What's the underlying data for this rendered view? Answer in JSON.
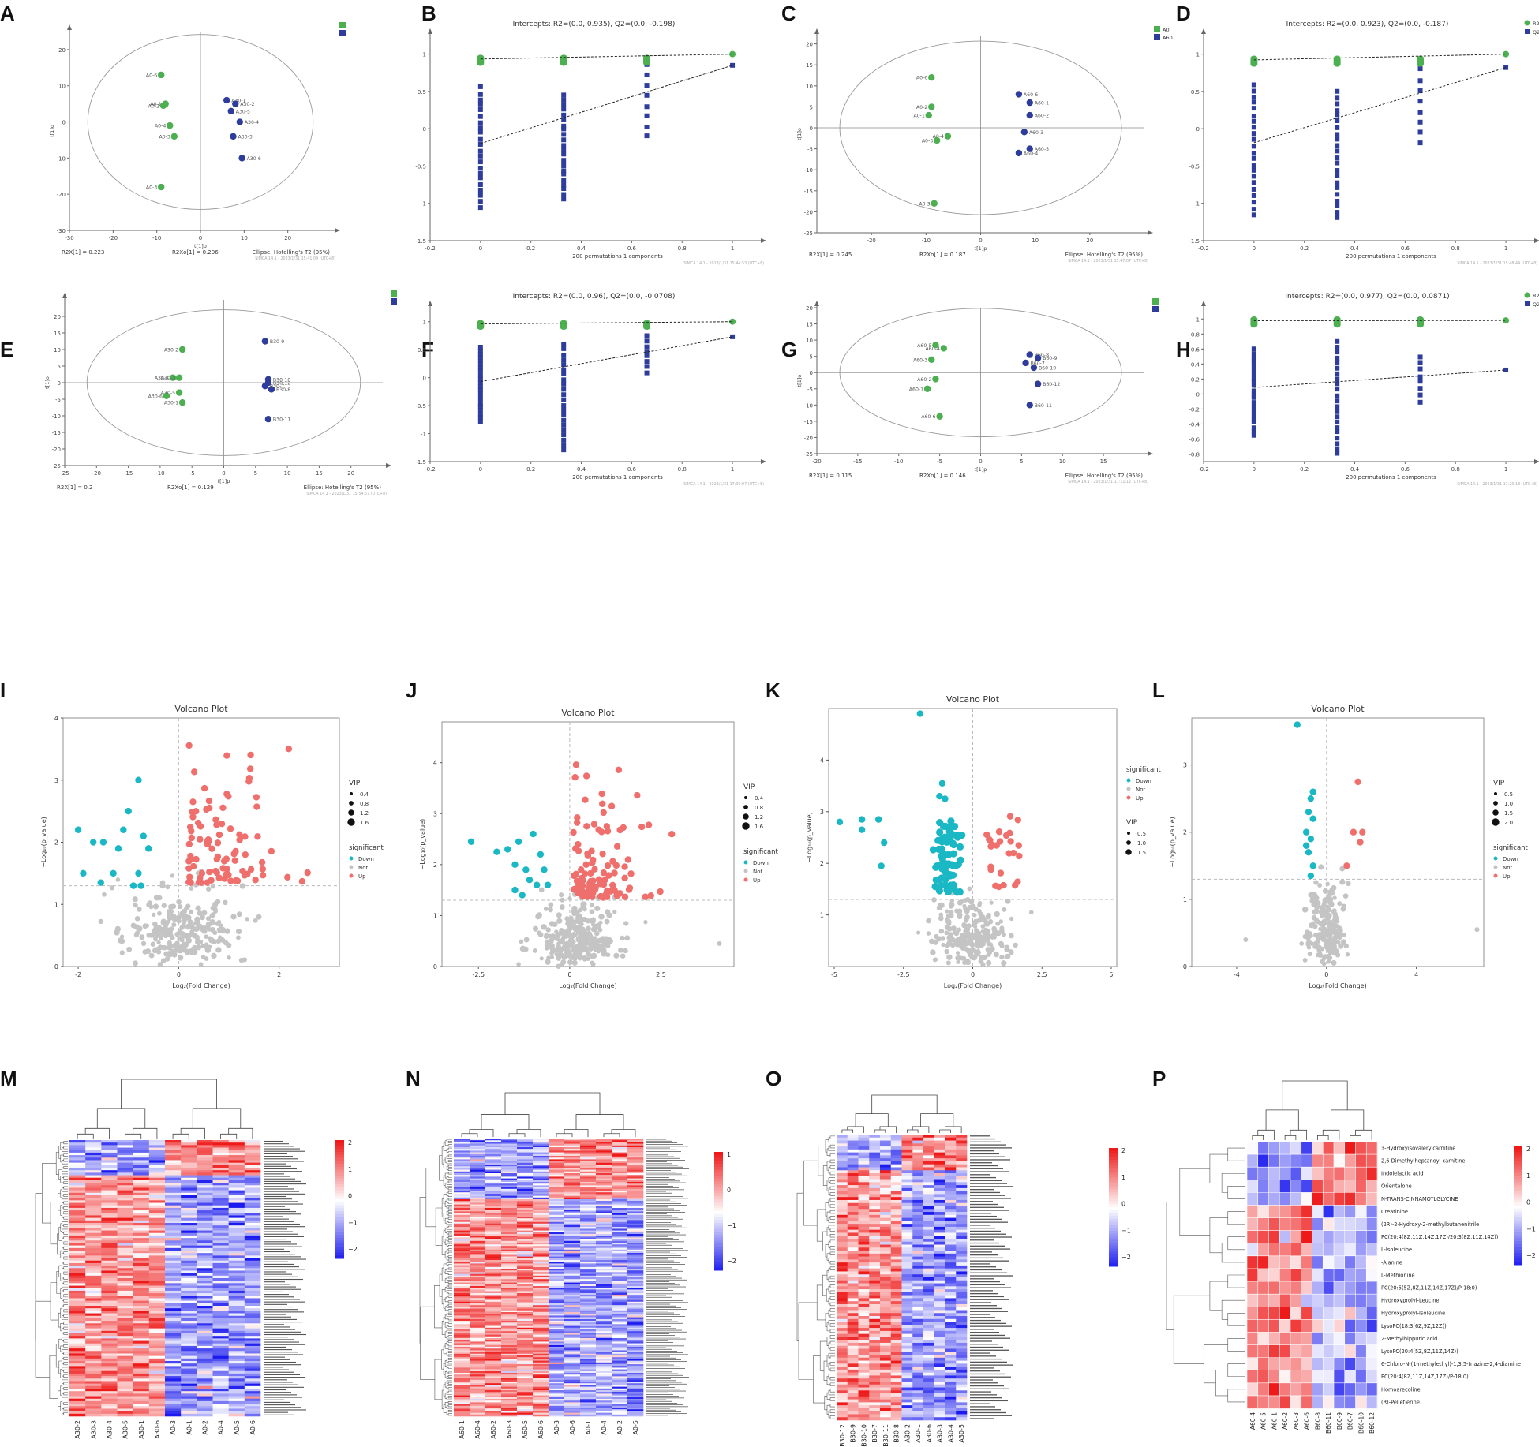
{
  "figure": {
    "panel_letters": [
      "A",
      "B",
      "C",
      "D",
      "E",
      "F",
      "G",
      "H",
      "I",
      "J",
      "K",
      "L",
      "M",
      "N",
      "O",
      "P"
    ]
  },
  "colors": {
    "green": "#4caf50",
    "blue": "#2e3d9b",
    "down": "#1ab7c4",
    "up": "#ef6f6c",
    "not": "#c4c4c4",
    "hm_low": "#1a1aee",
    "hm_mid": "#ffffff",
    "hm_high": "#ee1a1a"
  },
  "chart_data": [
    {
      "id": "A",
      "type": "scatter",
      "subtype": "opls-da-score",
      "x": [
        -9,
        -8,
        -8.5,
        -7,
        -6,
        -9,
        6,
        8,
        7,
        9,
        7.5,
        9.5
      ],
      "y": [
        13,
        5,
        4.5,
        -1,
        -4,
        -18,
        6,
        5,
        3,
        0,
        -4,
        -10
      ],
      "point_labels": [
        "A0-6",
        "A0-1",
        "A0-2",
        "A0-4",
        "A0-3",
        "A0-3",
        "A30-1",
        "A30-2",
        "A30-5",
        "A30-4",
        "A30-3",
        "A30-6"
      ],
      "groups": [
        "g",
        "g",
        "g",
        "g",
        "g",
        "g",
        "b",
        "b",
        "b",
        "b",
        "b",
        "b"
      ],
      "legend": [
        "",
        ""
      ],
      "xlim": [
        -30,
        30
      ],
      "ylim": [
        -30,
        25
      ],
      "xticks": [
        -30,
        -20,
        -10,
        0,
        10,
        20
      ],
      "yticks": [
        -30,
        -20,
        -10,
        0,
        10,
        20
      ],
      "xlabel": "t[1]p",
      "ylabel": "t[1]o",
      "footer": [
        "R2X[1] = 0.223",
        "R2Xo[1] = 0.206",
        "Ellipse: Hotelling's T2 (95%)"
      ],
      "stamp": "SIMCA 14.1 - 2023/1/31 15:41:04 (UTC+8)"
    },
    {
      "id": "B",
      "type": "scatter",
      "subtype": "permutation",
      "title": "Intercepts: R2=(0.0, 0.935), Q2=(0.0, -0.198)",
      "r2_end": 1.0,
      "q2_end": 0.85,
      "r2_intercept": 0.935,
      "q2_intercept": -0.198,
      "xlim": [
        -0.2,
        1.1
      ],
      "ylim": [
        -1.5,
        1.25
      ],
      "xticks": [
        -0.2,
        0,
        0.2,
        0.4,
        0.6,
        0.8,
        1
      ],
      "yticks": [
        -1.5,
        -1,
        -0.5,
        0,
        0.5,
        1
      ],
      "xlabel": "200 permutations 1 components",
      "q2_low": [
        -1.05,
        -0.95,
        -0.1
      ],
      "q2_high": [
        0.55,
        0.45,
        0.85
      ],
      "legend": [],
      "stamp": "SIMCA 14.1 - 2023/1/31 15:44:53 (UTC+8)"
    },
    {
      "id": "C",
      "type": "scatter",
      "subtype": "opls-da-score",
      "x": [
        -9,
        -9,
        -9.5,
        -6,
        -8,
        -8.5,
        7,
        9,
        9,
        8,
        9,
        7
      ],
      "y": [
        12,
        5,
        3,
        -2,
        -3,
        -18,
        8,
        6,
        3,
        -1,
        -5,
        -6
      ],
      "point_labels": [
        "A0-6",
        "A0-2",
        "A0-1",
        "A0-4",
        "A0-3",
        "A0-3",
        "A60-6",
        "A60-1",
        "A60-2",
        "A60-3",
        "A60-5",
        "A60-4"
      ],
      "groups": [
        "g",
        "g",
        "g",
        "g",
        "g",
        "g",
        "b",
        "b",
        "b",
        "b",
        "b",
        "b"
      ],
      "legend": [
        "A0",
        "A60"
      ],
      "xlim": [
        -30,
        30
      ],
      "ylim": [
        -25,
        22
      ],
      "xticks": [
        -20,
        -10,
        0,
        10,
        20
      ],
      "yticks": [
        -25,
        -20,
        -15,
        -10,
        -5,
        0,
        5,
        10,
        15,
        20
      ],
      "xlabel": "t[1]p",
      "ylabel": "t[1]o",
      "footer": [
        "R2X[1] = 0.245",
        "R2Xo[1] = 0.187",
        "Ellipse: Hotelling's T2 (95%)"
      ],
      "stamp": "SIMCA 14.1 - 2023/1/31 15:47:07 (UTC+8)"
    },
    {
      "id": "D",
      "type": "scatter",
      "subtype": "permutation",
      "title": "Intercepts: R2=(0.0, 0.923), Q2=(0.0, -0.187)",
      "r2_end": 1.0,
      "q2_end": 0.82,
      "r2_intercept": 0.923,
      "q2_intercept": -0.187,
      "xlim": [
        -0.2,
        1.1
      ],
      "ylim": [
        -1.5,
        1.25
      ],
      "xticks": [
        -0.2,
        0,
        0.2,
        0.4,
        0.6,
        0.8,
        1
      ],
      "yticks": [
        -1.5,
        -1,
        -0.5,
        0,
        0.5,
        1
      ],
      "xlabel": "200 permutations 1 components",
      "q2_low": [
        -1.15,
        -1.2,
        -0.2
      ],
      "q2_high": [
        0.6,
        0.5,
        0.8
      ],
      "legend": [
        "R2",
        "Q2"
      ],
      "stamp": "SIMCA 14.1 - 2023/1/31 15:48:44 (UTC+8)"
    },
    {
      "id": "E",
      "type": "scatter",
      "subtype": "opls-da-score",
      "x": [
        -6.5,
        -8,
        -7,
        -9,
        -7,
        -6.5,
        6.5,
        7,
        7,
        7.5,
        7,
        6.5
      ],
      "y": [
        10,
        1.5,
        1.5,
        -4,
        -3,
        -6,
        12.5,
        1,
        0,
        -2,
        -11,
        -1
      ],
      "point_labels": [
        "A30-2",
        "A30-4",
        "A30-3",
        "A30-6",
        "A30-5",
        "A30-1",
        "B30-9",
        "B30-10",
        "B30-12",
        "B30-8",
        "B30-11",
        "B30-7"
      ],
      "groups": [
        "g",
        "g",
        "g",
        "g",
        "g",
        "g",
        "b",
        "b",
        "b",
        "b",
        "b",
        "b"
      ],
      "legend": [
        "",
        ""
      ],
      "xlim": [
        -25,
        25
      ],
      "ylim": [
        -25,
        25
      ],
      "xticks": [
        -25,
        -20,
        -15,
        -10,
        -5,
        0,
        5,
        10,
        15,
        20
      ],
      "yticks": [
        -25,
        -20,
        -15,
        -10,
        -5,
        0,
        5,
        10,
        15,
        20
      ],
      "xlabel": "t[1]p",
      "ylabel": "t[1]o",
      "footer": [
        "R2X[1] = 0.2",
        "R2Xo[1] = 0.129",
        "Ellipse: Hotelling's T2 (95%)"
      ],
      "stamp": "SIMCA 14.1 - 2023/1/31 15:54:57 (UTC+8)"
    },
    {
      "id": "F",
      "type": "scatter",
      "subtype": "permutation",
      "title": "Intercepts: R2=(0.0, 0.96), Q2=(0.0, -0.0708)",
      "r2_end": 1.0,
      "q2_end": 0.73,
      "r2_intercept": 0.96,
      "q2_intercept": -0.0708,
      "xlim": [
        -0.2,
        1.1
      ],
      "ylim": [
        -1.5,
        1.25
      ],
      "xticks": [
        -0.2,
        0,
        0.2,
        0.4,
        0.6,
        0.8,
        1
      ],
      "yticks": [
        -1.5,
        -1,
        -0.5,
        0,
        0.5,
        1
      ],
      "xlabel": "200 permutations 1 components",
      "q2_low": [
        -0.78,
        -1.3,
        0.1
      ],
      "q2_high": [
        0.55,
        0.6,
        0.75
      ],
      "legend": [],
      "stamp": "SIMCA 14.1 - 2023/1/31 17:09:07 (UTC+8)"
    },
    {
      "id": "G",
      "type": "scatter",
      "subtype": "opls-da-score",
      "x": [
        -5.5,
        -4.5,
        -6,
        -5.5,
        -6.5,
        -5,
        6,
        7,
        5.5,
        6.5,
        7,
        6
      ],
      "y": [
        8.5,
        7.5,
        4,
        -2,
        -5,
        -13.5,
        5.5,
        4.5,
        3,
        1.5,
        -3.5,
        -10
      ],
      "point_labels": [
        "A60-5",
        "A60-4",
        "A60-3",
        "A60-2",
        "A60-1",
        "A60-6",
        "B60-8",
        "B60-9",
        "B60-7",
        "B60-10",
        "B60-12",
        "B60-11"
      ],
      "groups": [
        "g",
        "g",
        "g",
        "g",
        "g",
        "g",
        "b",
        "b",
        "b",
        "b",
        "b",
        "b"
      ],
      "legend": [],
      "xlim": [
        -20,
        20
      ],
      "ylim": [
        -25,
        20
      ],
      "xticks": [
        -20,
        -15,
        -10,
        -5,
        0,
        5,
        10,
        15
      ],
      "yticks": [
        -25,
        -20,
        -15,
        -10,
        -5,
        0,
        5,
        10,
        15,
        20
      ],
      "xlabel": "t[1]p",
      "ylabel": "t[1]o",
      "footer": [
        "R2X[1] = 0.115",
        "R2Xo[1] = 0.146",
        "Ellipse: Hotelling's T2 (95%)"
      ],
      "stamp": "SIMCA 14.1 - 2023/1/31 17:11:12 (UTC+8)"
    },
    {
      "id": "H",
      "type": "scatter",
      "subtype": "permutation",
      "title": "Intercepts: R2=(0.0, 0.977), Q2=(0.0, 0.0871)",
      "r2_end": 0.98,
      "q2_end": 0.32,
      "r2_intercept": 0.977,
      "q2_intercept": 0.0871,
      "xlim": [
        -0.2,
        1.1
      ],
      "ylim": [
        -0.9,
        1.15
      ],
      "xticks": [
        -0.2,
        0,
        0.2,
        0.4,
        0.6,
        0.8,
        1
      ],
      "yticks": [
        -0.8,
        -0.6,
        -0.4,
        -0.2,
        0,
        0.2,
        0.4,
        0.6,
        0.8,
        1
      ],
      "xlabel": "200 permutations 1 components",
      "q2_low": [
        -0.55,
        -0.8,
        -0.1
      ],
      "q2_high": [
        0.6,
        0.7,
        0.5
      ],
      "legend": [
        "R2",
        "Q2"
      ],
      "stamp": "SIMCA 14.1 - 2023/1/31 17:20:18 (UTC+8)"
    },
    {
      "id": "I",
      "type": "scatter",
      "subtype": "volcano",
      "title": "Volcano Plot",
      "xlabel": "Log₂(Fold Change)",
      "ylabel": "−Log₁₀(p_value)",
      "xlim": [
        -2.3,
        3.2
      ],
      "ylim": [
        0,
        4
      ],
      "xticks": [
        -2,
        0,
        2
      ],
      "yticks": [
        0,
        1,
        2,
        3,
        4
      ],
      "threshold": 1.3,
      "down": [
        [
          -2,
          2.2
        ],
        [
          -1.9,
          1.5
        ],
        [
          -1.7,
          2.0
        ],
        [
          -1.5,
          2.0
        ],
        [
          -1.3,
          1.5
        ],
        [
          -1.2,
          1.9
        ],
        [
          -1.1,
          2.2
        ],
        [
          -1.0,
          2.5
        ],
        [
          -0.8,
          3.0
        ],
        [
          -0.8,
          1.5
        ],
        [
          -0.9,
          1.3
        ],
        [
          -0.6,
          1.9
        ],
        [
          -0.7,
          2.1
        ],
        [
          -1.55,
          1.35
        ],
        [
          -0.75,
          1.3
        ]
      ],
      "up_count": 90,
      "not_count": 260,
      "vip_legend_title": "VIP",
      "vip_legend": [
        "0.4",
        "0.8",
        "1.2",
        "1.6"
      ],
      "sig_legend_title": "significant",
      "sig_legend": [
        "Down",
        "Not",
        "Up"
      ],
      "seed": 11
    },
    {
      "id": "J",
      "type": "scatter",
      "subtype": "volcano",
      "title": "Volcano Plot",
      "xlabel": "Log₂(Fold Change)",
      "ylabel": "−Log₁₀(p_value)",
      "xlim": [
        -3.5,
        4.5
      ],
      "ylim": [
        0,
        4.8
      ],
      "xticks": [
        -2.5,
        0,
        2.5
      ],
      "yticks": [
        0,
        1,
        2,
        3,
        4
      ],
      "threshold": 1.3,
      "down": [
        [
          -2.7,
          2.45
        ],
        [
          -2.0,
          2.25
        ],
        [
          -1.7,
          2.3
        ],
        [
          -1.4,
          2.45
        ],
        [
          -1.2,
          1.9
        ],
        [
          -1.0,
          2.6
        ],
        [
          -0.8,
          2.2
        ],
        [
          -0.7,
          1.9
        ],
        [
          -1.5,
          1.5
        ],
        [
          -1.3,
          1.4
        ],
        [
          -0.9,
          1.6
        ],
        [
          -1.1,
          1.7
        ],
        [
          -0.6,
          1.6
        ],
        [
          -1.5,
          2.0
        ]
      ],
      "up_count": 110,
      "not_count": 280,
      "vip_legend_title": "VIP",
      "vip_legend": [
        "0.4",
        "0.8",
        "1.2",
        "1.6"
      ],
      "sig_legend_title": "significant",
      "sig_legend": [
        "Down",
        "Not",
        "Up"
      ],
      "seed": 23
    },
    {
      "id": "K",
      "type": "scatter",
      "subtype": "volcano",
      "title": "Volcano Plot",
      "xlabel": "Log₂(Fold Change)",
      "ylabel": "−Log₁₀(p_value)",
      "xlim": [
        -5.2,
        5.2
      ],
      "ylim": [
        0,
        5
      ],
      "xticks": [
        -5.0,
        -2.5,
        0.0,
        2.5,
        5.0
      ],
      "yticks": [
        1,
        2,
        3,
        4
      ],
      "threshold": 1.3,
      "down": [
        [
          -4.8,
          2.8
        ],
        [
          -4.0,
          2.85
        ],
        [
          -4.0,
          2.65
        ],
        [
          -3.4,
          2.85
        ],
        [
          -3.2,
          2.4
        ],
        [
          -3.3,
          1.95
        ],
        [
          -1.9,
          4.9
        ],
        [
          -1.2,
          3.3
        ],
        [
          -1.0,
          3.25
        ],
        [
          -1.1,
          3.55
        ],
        [
          -0.8,
          2.5
        ]
      ],
      "down_cluster": 70,
      "up_count": 25,
      "not_count": 230,
      "vip_legend_title": "VIP",
      "vip_legend": [
        "0.5",
        "1.0",
        "1.5"
      ],
      "sig_legend_title": "significant",
      "sig_legend": [
        "Down",
        "Not",
        "Up"
      ],
      "seed": 37
    },
    {
      "id": "L",
      "type": "scatter",
      "subtype": "volcano",
      "title": "Volcano Plot",
      "xlabel": "Log₂(Fold Change)",
      "ylabel": "−Log₁₀(p_value)",
      "xlim": [
        -6,
        7
      ],
      "ylim": [
        0,
        3.7
      ],
      "xticks": [
        -4,
        0,
        4
      ],
      "yticks": [
        0,
        1,
        2,
        3
      ],
      "threshold": 1.3,
      "down": [
        [
          -1.3,
          3.6
        ],
        [
          -0.6,
          2.6
        ],
        [
          -0.7,
          2.5
        ],
        [
          -0.8,
          2.3
        ],
        [
          -0.6,
          2.2
        ],
        [
          -0.9,
          2.0
        ],
        [
          -0.7,
          1.9
        ],
        [
          -0.8,
          1.7
        ],
        [
          -0.6,
          1.5
        ],
        [
          -0.7,
          1.35
        ],
        [
          -0.9,
          1.8
        ]
      ],
      "up_list": [
        [
          1.4,
          2.75
        ],
        [
          1.2,
          2.0
        ],
        [
          1.6,
          2.0
        ],
        [
          1.5,
          1.85
        ],
        [
          0.9,
          1.5
        ]
      ],
      "not_count": 200,
      "vip_legend_title": "VIP",
      "vip_legend": [
        "0.5",
        "1.0",
        "1.5",
        "2.0"
      ],
      "sig_legend_title": "significant",
      "sig_legend": [
        "Down",
        "Not",
        "Up"
      ],
      "seed": 51
    },
    {
      "id": "M",
      "type": "heatmap",
      "columns": [
        "A30-2",
        "A30-3",
        "A30-4",
        "A30-5",
        "A30-1",
        "A30-6",
        "A0-3",
        "A0-1",
        "A0-2",
        "A0-4",
        "A0-5",
        "A0-6"
      ],
      "n_rows": 110,
      "split": 6,
      "rowfrac_up": 0.13,
      "colorbar": [
        "2",
        "1",
        "0",
        "−1",
        "−2"
      ],
      "seed": 101
    },
    {
      "id": "N",
      "type": "heatmap",
      "columns": [
        "A60-1",
        "A60-4",
        "A60-2",
        "A60-3",
        "A60-5",
        "A60-6",
        "A0-3",
        "A0-6",
        "A0-1",
        "A0-4",
        "A0-2",
        "A0-5"
      ],
      "n_rows": 160,
      "split": 6,
      "rowfrac_up": 0.22,
      "colorbar": [
        "1",
        "0",
        "−1",
        "−2"
      ],
      "seed": 202
    },
    {
      "id": "O",
      "type": "heatmap",
      "columns": [
        "B30-12",
        "B30-9",
        "B30-10",
        "B30-7",
        "B30-11",
        "B30-8",
        "A30-2",
        "A30-1",
        "A30-6",
        "A30-3",
        "A30-4",
        "A30-5"
      ],
      "n_rows": 96,
      "split": 6,
      "rowfrac_up": 0.12,
      "colorbar": [
        "2",
        "1",
        "0",
        "−1",
        "−2"
      ],
      "seed": 303
    },
    {
      "id": "P",
      "type": "heatmap",
      "columns": [
        "A60-4",
        "A60-5",
        "A60-1",
        "A60-2",
        "A60-3",
        "A60-6",
        "B60-8",
        "B60-11",
        "B60-9",
        "B60-7",
        "B60-10",
        "B60-12"
      ],
      "rows": [
        "3-Hydroxyisovalerylcarnitine",
        "2,6 Dimethylheptanoyl carnitine",
        "Indolelactic acid",
        "Orientalone",
        "N-TRANS-CINNAMOYLGLYCINE",
        "Creatinine",
        "(2R)-2-Hydroxy-2-methylbutanenitrile",
        "PC(20:4(8Z,11Z,14Z,17Z)/20:3(8Z,11Z,14Z))",
        "L-Isoleucine",
        "-Alanine",
        "L-Methionine",
        "PC(20:5(5Z,8Z,11Z,14Z,17Z)/P-18:0)",
        "Hydroxyprolyl-Leucine",
        "Hydroxyprolyl-Isoleucine",
        "LysoPC(18:3(6Z,9Z,12Z))",
        "2-Methylhippuric acid",
        "LysoPC(20:4(5Z,8Z,11Z,14Z))",
        "6-Chloro-N-(1-methylethyl)-1,3,5-triazine-2,4-diamine",
        "PC(20:4(8Z,11Z,14Z,17Z)/P-18:0)",
        "Homoarecoline",
        "(R)-Pelletierine"
      ],
      "split": 6,
      "rowfrac_up": 0.24,
      "colorbar": [
        "2",
        "1",
        "0",
        "−1",
        "−2"
      ],
      "seed": 404
    }
  ]
}
